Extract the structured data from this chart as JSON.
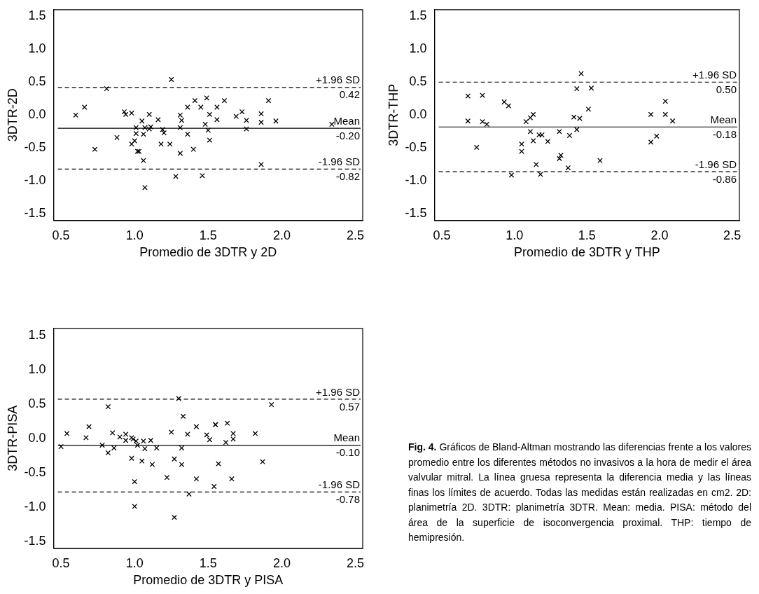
{
  "chart_data": [
    {
      "type": "scatter",
      "xlabel": "Promedio de 3DTR y 2D",
      "ylabel": "3DTR-2D",
      "color": "#000000",
      "marker": "cross",
      "x": [
        0.6,
        0.66,
        0.73,
        0.81,
        0.88,
        0.93,
        0.94,
        0.98,
        0.98,
        1.0,
        1.01,
        1.01,
        1.02,
        1.03,
        1.05,
        1.06,
        1.06,
        1.07,
        1.07,
        1.1,
        1.1,
        1.11,
        1.16,
        1.18,
        1.19,
        1.2,
        1.24,
        1.25,
        1.28,
        1.31,
        1.31,
        1.31,
        1.32,
        1.36,
        1.36,
        1.4,
        1.41,
        1.45,
        1.46,
        1.48,
        1.49,
        1.5,
        1.51,
        1.51,
        1.56,
        1.56,
        1.61,
        1.69,
        1.73,
        1.76,
        1.76,
        1.86,
        1.86,
        1.86,
        1.91,
        1.96,
        2.34
      ],
      "values": [
        0.0,
        0.12,
        -0.52,
        0.4,
        -0.34,
        0.05,
        0.01,
        0.03,
        -0.44,
        -0.39,
        -0.19,
        -0.28,
        -0.55,
        -0.55,
        -0.09,
        -0.69,
        -0.29,
        -0.19,
        -1.1,
        -0.21,
        0.01,
        -0.18,
        -0.07,
        -0.44,
        -0.22,
        -0.27,
        -0.44,
        0.54,
        -0.93,
        0.0,
        -0.19,
        -0.58,
        -0.08,
        0.12,
        -0.29,
        -0.52,
        0.22,
        0.12,
        -0.92,
        -0.14,
        0.26,
        -0.23,
        -0.38,
        0.01,
        0.12,
        -0.07,
        0.22,
        -0.02,
        0.05,
        -0.08,
        -0.21,
        0.02,
        -0.11,
        -0.75,
        0.22,
        -0.09,
        -0.14
      ],
      "xlim": [
        0.45,
        2.55
      ],
      "ylim": [
        -1.6,
        1.6
      ],
      "xticks": [
        {
          "value": 0.5,
          "label": "0.5"
        },
        {
          "value": 1,
          "label": "1.0"
        },
        {
          "value": 1.5,
          "label": "1.5"
        },
        {
          "value": 2,
          "label": "2.0"
        },
        {
          "value": 2.5,
          "label": "2.5"
        }
      ],
      "yticks": [
        {
          "value": -1.5,
          "label": "-1.5"
        },
        {
          "value": -1,
          "label": "-1.0"
        },
        {
          "value": -0.5,
          "label": "-0.5"
        },
        {
          "value": 0,
          "label": "0.0"
        },
        {
          "value": 0.5,
          "label": "0.5"
        },
        {
          "value": 1,
          "label": "1.0"
        },
        {
          "value": 1.5,
          "label": "1.5"
        }
      ],
      "ref_lines": [
        {
          "axis": "y",
          "value": 0.42,
          "label": "+1.96 SD\n0.42",
          "line_style": "dashed"
        },
        {
          "axis": "y",
          "value": -0.2,
          "label": "Mean\n-0.20",
          "line_style": "solid"
        },
        {
          "axis": "y",
          "value": -0.82,
          "label": "-1.96 SD\n-0.82",
          "line_style": "dashed"
        }
      ]
    },
    {
      "type": "scatter",
      "xlabel": "Promedio de 3DTR y THP",
      "ylabel": "3DTR-THP",
      "color": "#000000",
      "marker": "cross",
      "x": [
        0.68,
        0.68,
        0.78,
        0.78,
        0.81,
        0.74,
        0.93,
        0.96,
        0.98,
        1.05,
        1.05,
        1.08,
        1.11,
        1.11,
        1.13,
        1.13,
        1.15,
        1.17,
        1.18,
        1.19,
        1.23,
        1.31,
        1.31,
        1.32,
        1.37,
        1.38,
        1.41,
        1.43,
        1.43,
        1.45,
        1.46,
        1.51,
        1.53,
        1.59,
        1.94,
        1.94,
        1.98,
        2.04,
        2.04,
        2.09
      ],
      "values": [
        0.29,
        -0.09,
        0.3,
        -0.1,
        -0.14,
        -0.49,
        0.2,
        0.14,
        -0.91,
        -0.44,
        -0.55,
        -0.1,
        -0.25,
        -0.04,
        -0.39,
        0.01,
        -0.75,
        -0.3,
        -0.9,
        -0.3,
        -0.4,
        -0.25,
        -0.66,
        -0.61,
        -0.8,
        -0.31,
        -0.03,
        0.4,
        -0.22,
        -0.05,
        0.63,
        0.09,
        0.41,
        -0.69,
        0.01,
        -0.41,
        -0.32,
        0.21,
        0.01,
        -0.09
      ],
      "xlim": [
        0.45,
        2.55
      ],
      "ylim": [
        -1.6,
        1.6
      ],
      "xticks": [
        {
          "value": 0.5,
          "label": "0.5"
        },
        {
          "value": 1,
          "label": "1.0"
        },
        {
          "value": 1.5,
          "label": "1.5"
        },
        {
          "value": 2,
          "label": "2.0"
        },
        {
          "value": 2.5,
          "label": "2.5"
        }
      ],
      "yticks": [
        {
          "value": -1.5,
          "label": "-1.5"
        },
        {
          "value": -1,
          "label": "-1.0"
        },
        {
          "value": -0.5,
          "label": "-0.5"
        },
        {
          "value": 0,
          "label": "0.0"
        },
        {
          "value": 0.5,
          "label": "0.5"
        },
        {
          "value": 1,
          "label": "1.0"
        },
        {
          "value": 1.5,
          "label": "1.5"
        }
      ],
      "ref_lines": [
        {
          "axis": "y",
          "value": 0.5,
          "label": "+1.96 SD\n0.50",
          "line_style": "dashed"
        },
        {
          "axis": "y",
          "value": -0.18,
          "label": "Mean\n-0.18",
          "line_style": "solid"
        },
        {
          "axis": "y",
          "value": -0.86,
          "label": "-1.96 SD\n-0.86",
          "line_style": "dashed"
        }
      ]
    },
    {
      "type": "scatter",
      "xlabel": "Promedio de 3DTR y PISA",
      "ylabel": "3DTR-PISA",
      "color": "#000000",
      "marker": "cross",
      "x": [
        0.5,
        0.54,
        0.67,
        0.69,
        0.78,
        0.82,
        0.82,
        0.85,
        0.86,
        0.9,
        0.94,
        0.94,
        0.98,
        0.98,
        0.99,
        1.0,
        1.0,
        1.01,
        1.02,
        1.05,
        1.06,
        1.07,
        1.11,
        1.12,
        1.15,
        1.22,
        1.25,
        1.27,
        1.27,
        1.3,
        1.32,
        1.32,
        1.33,
        1.36,
        1.37,
        1.42,
        1.42,
        1.49,
        1.51,
        1.54,
        1.55,
        1.55,
        1.57,
        1.62,
        1.63,
        1.66,
        1.67,
        1.67,
        1.82,
        1.87,
        1.93
      ],
      "values": [
        -0.12,
        0.07,
        0.01,
        0.17,
        -0.1,
        0.46,
        -0.21,
        0.08,
        -0.14,
        0.02,
        0.06,
        -0.03,
        0.01,
        -0.29,
        -0.01,
        -0.63,
        -0.99,
        -0.04,
        -0.1,
        -0.33,
        -0.04,
        -0.15,
        -0.03,
        -0.38,
        -0.14,
        -0.57,
        0.09,
        -0.3,
        -1.15,
        0.58,
        -0.38,
        -0.14,
        0.32,
        0.06,
        -0.81,
        -0.59,
        0.17,
        0.05,
        -0.02,
        -0.7,
        0.2,
        0.2,
        -0.37,
        -0.06,
        0.22,
        -0.59,
        0.07,
        -0.01,
        0.07,
        -0.34,
        0.49
      ],
      "xlim": [
        0.45,
        2.55
      ],
      "ylim": [
        -1.6,
        1.6
      ],
      "xticks": [
        {
          "value": 0.5,
          "label": "0.5"
        },
        {
          "value": 1,
          "label": "1.0"
        },
        {
          "value": 1.5,
          "label": "1.5"
        },
        {
          "value": 2,
          "label": "2.0"
        },
        {
          "value": 2.5,
          "label": "2.5"
        }
      ],
      "yticks": [
        {
          "value": -1.5,
          "label": "-1.5"
        },
        {
          "value": -1,
          "label": "-1.0"
        },
        {
          "value": -0.5,
          "label": "-0.5"
        },
        {
          "value": 0,
          "label": "0.0"
        },
        {
          "value": 0.5,
          "label": "0.5"
        },
        {
          "value": 1,
          "label": "1.0"
        },
        {
          "value": 1.5,
          "label": "1.5"
        }
      ],
      "ref_lines": [
        {
          "axis": "y",
          "value": 0.57,
          "label": "+1.96 SD\n0.57",
          "line_style": "dashed"
        },
        {
          "axis": "y",
          "value": -0.1,
          "label": "Mean\n-0.10",
          "line_style": "solid"
        },
        {
          "axis": "y",
          "value": -0.78,
          "label": "-1.96 SD\n-0.78",
          "line_style": "dashed"
        }
      ],
      "annotations": [
        "Fig. 4. Gráficos de Bland-Altman mostrando las diferencias frente a los valores promedio entre los diferentes métodos no invasivos a la hora de medir el área valvular mitral. La línea gruesa representa la diferencia media y las líneas finas los límites de acuerdo. Todas las medidas están realizadas en cm2. 2D: planimetría 2D. 3DTR: planimetría 3DTR. Mean: media. PISA: método del área de la superficie de isoconvergencia proximal. THP: tiempo de hemipresión."
      ]
    }
  ]
}
